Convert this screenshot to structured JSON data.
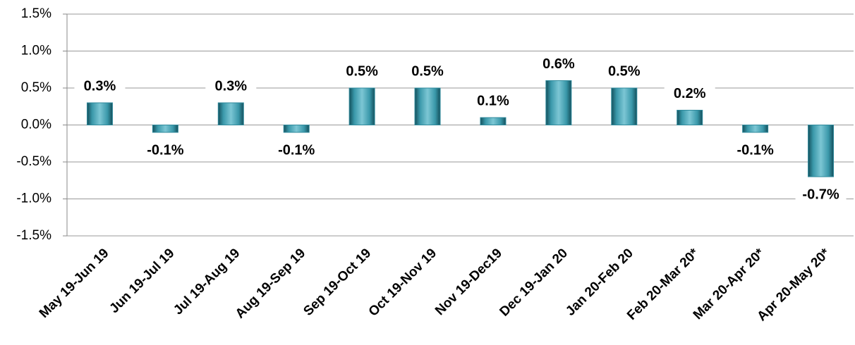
{
  "chart_data": {
    "type": "bar",
    "categories": [
      "May 19-Jun 19",
      "Jun 19-Jul 19",
      "Jul 19-Aug 19",
      "Aug 19-Sep 19",
      "Sep 19-Oct 19",
      "Oct 19-Nov 19",
      "Nov 19-Dec19",
      "Dec 19-Jan 20",
      "Jan 20-Feb 20",
      "Feb 20-Mar 20*",
      "Mar 20-Apr 20*",
      "Apr 20-May 20*"
    ],
    "values": [
      0.3,
      -0.1,
      0.3,
      -0.1,
      0.5,
      0.5,
      0.1,
      0.6,
      0.5,
      0.2,
      -0.1,
      -0.7
    ],
    "value_labels": [
      "0.3%",
      "-0.1%",
      "0.3%",
      "-0.1%",
      "0.5%",
      "0.5%",
      "0.1%",
      "0.6%",
      "0.5%",
      "0.2%",
      "-0.1%",
      "-0.7%"
    ],
    "color": "#2f8a9c",
    "ylim": [
      -1.5,
      1.5
    ],
    "yticks": [
      {
        "value": -1.5,
        "label": "-1.5%"
      },
      {
        "value": -1.0,
        "label": "-1.0%"
      },
      {
        "value": -0.5,
        "label": "-0.5%"
      },
      {
        "value": 0.0,
        "label": "0.0%"
      },
      {
        "value": 0.5,
        "label": "0.5%"
      },
      {
        "value": 1.0,
        "label": "1.0%"
      },
      {
        "value": 1.5,
        "label": "1.5%"
      }
    ],
    "grid": true
  }
}
